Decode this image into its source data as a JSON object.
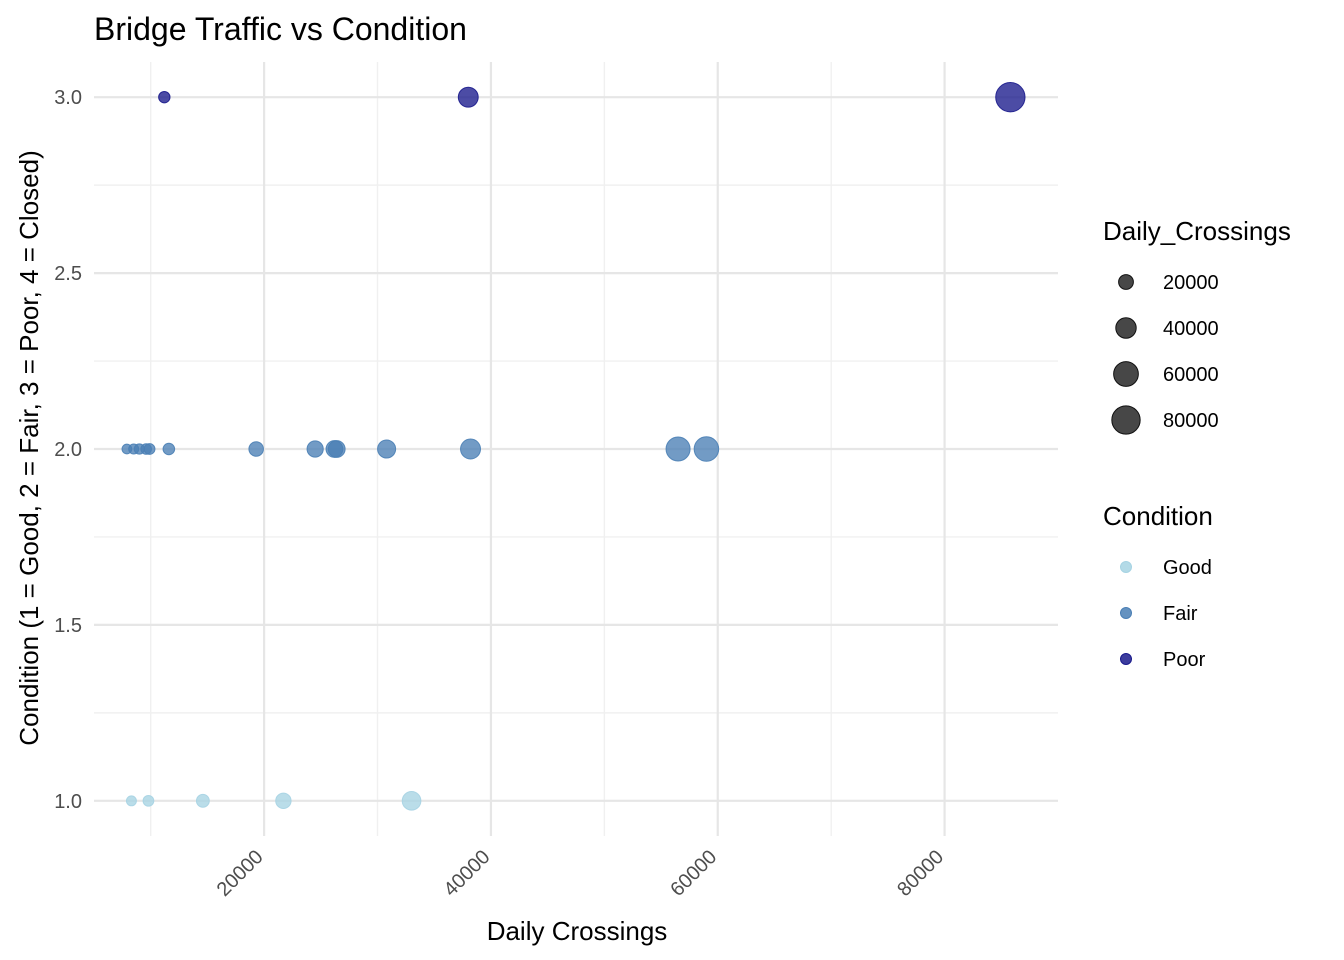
{
  "chart_data": {
    "type": "scatter",
    "title": "Bridge Traffic vs Condition",
    "xlabel": "Daily Crossings",
    "ylabel": "Condition (1 = Good, 2 = Fair, 3 = Poor, 4 = Closed)",
    "xlim": [
      5000,
      90000
    ],
    "ylim": [
      0.9,
      3.1
    ],
    "x_ticks": [
      20000,
      40000,
      60000,
      80000
    ],
    "y_ticks": [
      1.0,
      1.5,
      2.0,
      2.5,
      3.0
    ],
    "x_tick_labels": [
      "20000",
      "40000",
      "60000",
      "80000"
    ],
    "y_tick_labels": [
      "1.0",
      "1.5",
      "2.0",
      "2.5",
      "3.0"
    ],
    "grid": true,
    "colors": {
      "Good": "#a6d3e3",
      "Fair": "#4a7fb5",
      "Poor": "#1a1a8c",
      "size_legend": "#333333"
    },
    "series": [
      {
        "name": "Good",
        "x": [
          8300,
          9800,
          14600,
          21700,
          33000
        ],
        "y": [
          1,
          1,
          1,
          1,
          1
        ]
      },
      {
        "name": "Fair",
        "x": [
          7900,
          8500,
          9000,
          9600,
          9900,
          11600,
          19300,
          24500,
          26200,
          26400,
          30800,
          38200,
          56500,
          59000
        ],
        "y": [
          2,
          2,
          2,
          2,
          2,
          2,
          2,
          2,
          2,
          2,
          2,
          2,
          2,
          2
        ]
      },
      {
        "name": "Poor",
        "x": [
          11200,
          38000,
          85800
        ],
        "y": [
          3,
          3,
          3
        ]
      }
    ],
    "legend": {
      "position": "right",
      "size_title": "Daily_Crossings",
      "size_values": [
        20000,
        40000,
        60000,
        80000
      ],
      "size_labels": [
        "20000",
        "40000",
        "60000",
        "80000"
      ],
      "color_title": "Condition",
      "color_labels": [
        "Good",
        "Fair",
        "Poor"
      ]
    }
  }
}
